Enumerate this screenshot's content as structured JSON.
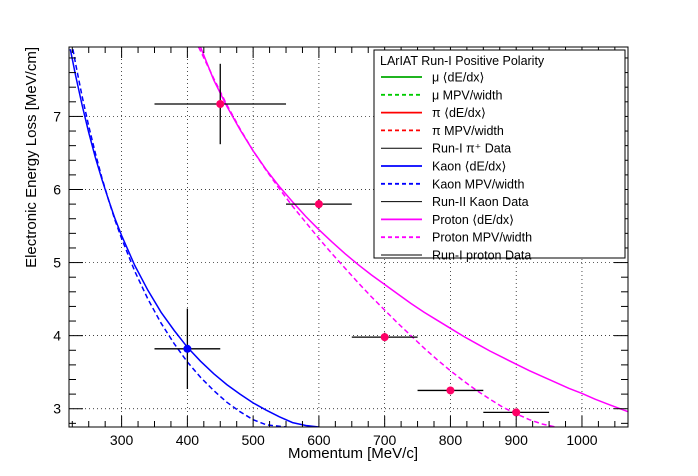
{
  "chart_data": {
    "type": "line",
    "title": "",
    "xlabel": "Momentum [MeV/c]",
    "ylabel": "Electronic Energy Loss [MeV/cm]",
    "xlim": [
      220,
      1070
    ],
    "ylim": [
      2.75,
      7.95
    ],
    "grid": true,
    "x_ticks": [
      300,
      400,
      500,
      600,
      700,
      800,
      900,
      1000
    ],
    "y_ticks": [
      3,
      4,
      5,
      6,
      7
    ],
    "legend": {
      "title": "LArIAT Run-I Positive Polarity",
      "placement": "top-right",
      "entries": [
        {
          "label": "μ ⟨dE/dx⟩",
          "color": "#00aa00",
          "dash": false
        },
        {
          "label": "μ MPV/width",
          "color": "#00cc00",
          "dash": true
        },
        {
          "label": "π ⟨dE/dx⟩",
          "color": "#ff0000",
          "dash": false
        },
        {
          "label": "π MPV/width",
          "color": "#ff0000",
          "dash": true
        },
        {
          "label": "Run-I π⁺ Data",
          "color": "#000000",
          "dash": false
        },
        {
          "label": "Kaon ⟨dE/dx⟩",
          "color": "#0000ff",
          "dash": false
        },
        {
          "label": "Kaon MPV/width",
          "color": "#0000ff",
          "dash": true
        },
        {
          "label": "Run-II Kaon Data",
          "color": "#000000",
          "dash": false
        },
        {
          "label": "Proton ⟨dE/dx⟩",
          "color": "#ff00ff",
          "dash": false
        },
        {
          "label": "Proton MPV/width",
          "color": "#ff00ff",
          "dash": true
        },
        {
          "label": "Run-I proton Data",
          "color": "#000000",
          "dash": false
        }
      ]
    },
    "series": [
      {
        "kind": "curve",
        "color": "#0000ff",
        "dash": false,
        "x": [
          222,
          230,
          240,
          250,
          260,
          270,
          280,
          290,
          300,
          320,
          340,
          360,
          380,
          400,
          420,
          440,
          460,
          480,
          500,
          520,
          540,
          560,
          580,
          600
        ],
        "y": [
          7.92,
          7.56,
          7.15,
          6.78,
          6.44,
          6.14,
          5.86,
          5.6,
          5.37,
          4.96,
          4.62,
          4.32,
          4.07,
          3.84,
          3.65,
          3.48,
          3.33,
          3.2,
          3.08,
          2.98,
          2.89,
          2.81,
          2.77,
          2.75
        ]
      },
      {
        "kind": "curve",
        "color": "#0000ff",
        "dash": true,
        "x": [
          226,
          230,
          240,
          250,
          260,
          270,
          280,
          290,
          300,
          320,
          340,
          360,
          380,
          400,
          420,
          440,
          460,
          480,
          500,
          520,
          540,
          550
        ],
        "y": [
          7.92,
          7.72,
          7.27,
          6.87,
          6.5,
          6.16,
          5.86,
          5.58,
          5.33,
          4.88,
          4.5,
          4.17,
          3.89,
          3.64,
          3.43,
          3.25,
          3.09,
          2.96,
          2.85,
          2.78,
          2.76,
          2.75
        ]
      },
      {
        "kind": "curve",
        "color": "#ff00ff",
        "dash": false,
        "x": [
          420,
          440,
          460,
          480,
          500,
          520,
          540,
          560,
          580,
          600,
          620,
          640,
          660,
          680,
          700,
          720,
          740,
          760,
          780,
          800,
          820,
          840,
          860,
          880,
          900,
          920,
          940,
          960,
          980,
          1000,
          1020,
          1040,
          1070
        ],
        "y": [
          7.95,
          7.5,
          7.14,
          6.82,
          6.53,
          6.27,
          6.04,
          5.83,
          5.63,
          5.45,
          5.28,
          5.12,
          4.97,
          4.83,
          4.7,
          4.57,
          4.44,
          4.32,
          4.21,
          4.1,
          3.99,
          3.89,
          3.79,
          3.7,
          3.61,
          3.52,
          3.44,
          3.36,
          3.28,
          3.21,
          3.13,
          3.06,
          2.96
        ]
      },
      {
        "kind": "curve",
        "color": "#ff00ff",
        "dash": true,
        "x": [
          417,
          440,
          460,
          480,
          500,
          520,
          540,
          560,
          580,
          600,
          620,
          640,
          660,
          680,
          700,
          720,
          740,
          760,
          780,
          800,
          820,
          840,
          860,
          880,
          900,
          920,
          940,
          960
        ],
        "y": [
          7.95,
          7.52,
          7.16,
          6.83,
          6.53,
          6.26,
          6.01,
          5.77,
          5.55,
          5.33,
          5.12,
          4.92,
          4.72,
          4.53,
          4.35,
          4.17,
          4.0,
          3.83,
          3.67,
          3.52,
          3.38,
          3.25,
          3.13,
          3.02,
          2.93,
          2.85,
          2.79,
          2.75
        ]
      },
      {
        "kind": "points",
        "color": "#0000ff",
        "points": [
          {
            "x": 400,
            "y": 3.82,
            "xerr": 50,
            "yerr": 0.55
          }
        ]
      },
      {
        "kind": "points",
        "color": "#ff0066",
        "points": [
          {
            "x": 450,
            "y": 7.17,
            "xerr": 100,
            "yerr": 0.55
          },
          {
            "x": 600,
            "y": 5.8,
            "xerr": 50,
            "yerr": 0.07
          },
          {
            "x": 700,
            "y": 3.98,
            "xerr": 50,
            "yerr": 0.06
          },
          {
            "x": 800,
            "y": 3.25,
            "xerr": 50,
            "yerr": 0.05
          },
          {
            "x": 900,
            "y": 2.95,
            "xerr": 50,
            "yerr": 0.05
          }
        ]
      }
    ]
  }
}
